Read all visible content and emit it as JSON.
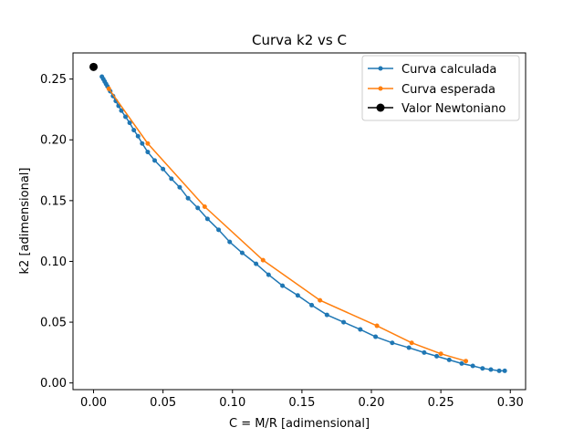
{
  "chart_data": {
    "type": "line",
    "title": "Curva k2 vs C",
    "xlabel": "C = M/R [adimensional]",
    "ylabel": "k2 [adimensional]",
    "xlim": [
      -0.0148,
      0.311
    ],
    "ylim": [
      -0.0055,
      0.2715
    ],
    "xticks": [
      "0.00",
      "0.05",
      "0.10",
      "0.15",
      "0.20",
      "0.25",
      "0.30"
    ],
    "yticks": [
      "0.00",
      "0.05",
      "0.10",
      "0.15",
      "0.20",
      "0.25"
    ],
    "grid": false,
    "legend_position": "top-right",
    "series": [
      {
        "name": "Curva calculada",
        "color": "#1f77b4",
        "marker": "circle",
        "x": [
          0.006,
          0.007,
          0.008,
          0.009,
          0.01,
          0.012,
          0.014,
          0.016,
          0.018,
          0.02,
          0.023,
          0.026,
          0.029,
          0.032,
          0.035,
          0.039,
          0.044,
          0.05,
          0.056,
          0.062,
          0.068,
          0.075,
          0.082,
          0.09,
          0.098,
          0.107,
          0.117,
          0.126,
          0.136,
          0.147,
          0.157,
          0.168,
          0.18,
          0.192,
          0.203,
          0.215,
          0.227,
          0.238,
          0.247,
          0.256,
          0.265,
          0.273,
          0.28,
          0.286,
          0.292,
          0.296
        ],
        "y": [
          0.252,
          0.25,
          0.248,
          0.246,
          0.244,
          0.24,
          0.236,
          0.232,
          0.228,
          0.224,
          0.219,
          0.214,
          0.208,
          0.203,
          0.197,
          0.19,
          0.183,
          0.176,
          0.168,
          0.161,
          0.152,
          0.144,
          0.135,
          0.126,
          0.116,
          0.107,
          0.098,
          0.089,
          0.08,
          0.072,
          0.064,
          0.056,
          0.05,
          0.044,
          0.038,
          0.033,
          0.029,
          0.025,
          0.022,
          0.019,
          0.016,
          0.014,
          0.012,
          0.011,
          0.01,
          0.01
        ]
      },
      {
        "name": "Curva esperada",
        "color": "#ff7f0e",
        "marker": "circle",
        "x": [
          0.011,
          0.039,
          0.08,
          0.122,
          0.163,
          0.204,
          0.229,
          0.25,
          0.268
        ],
        "y": [
          0.242,
          0.197,
          0.145,
          0.101,
          0.068,
          0.047,
          0.033,
          0.024,
          0.018
        ]
      },
      {
        "name": "Valor Newtoniano",
        "color": "#000000",
        "marker": "circle",
        "x": [
          0.0
        ],
        "y": [
          0.26
        ]
      }
    ]
  }
}
